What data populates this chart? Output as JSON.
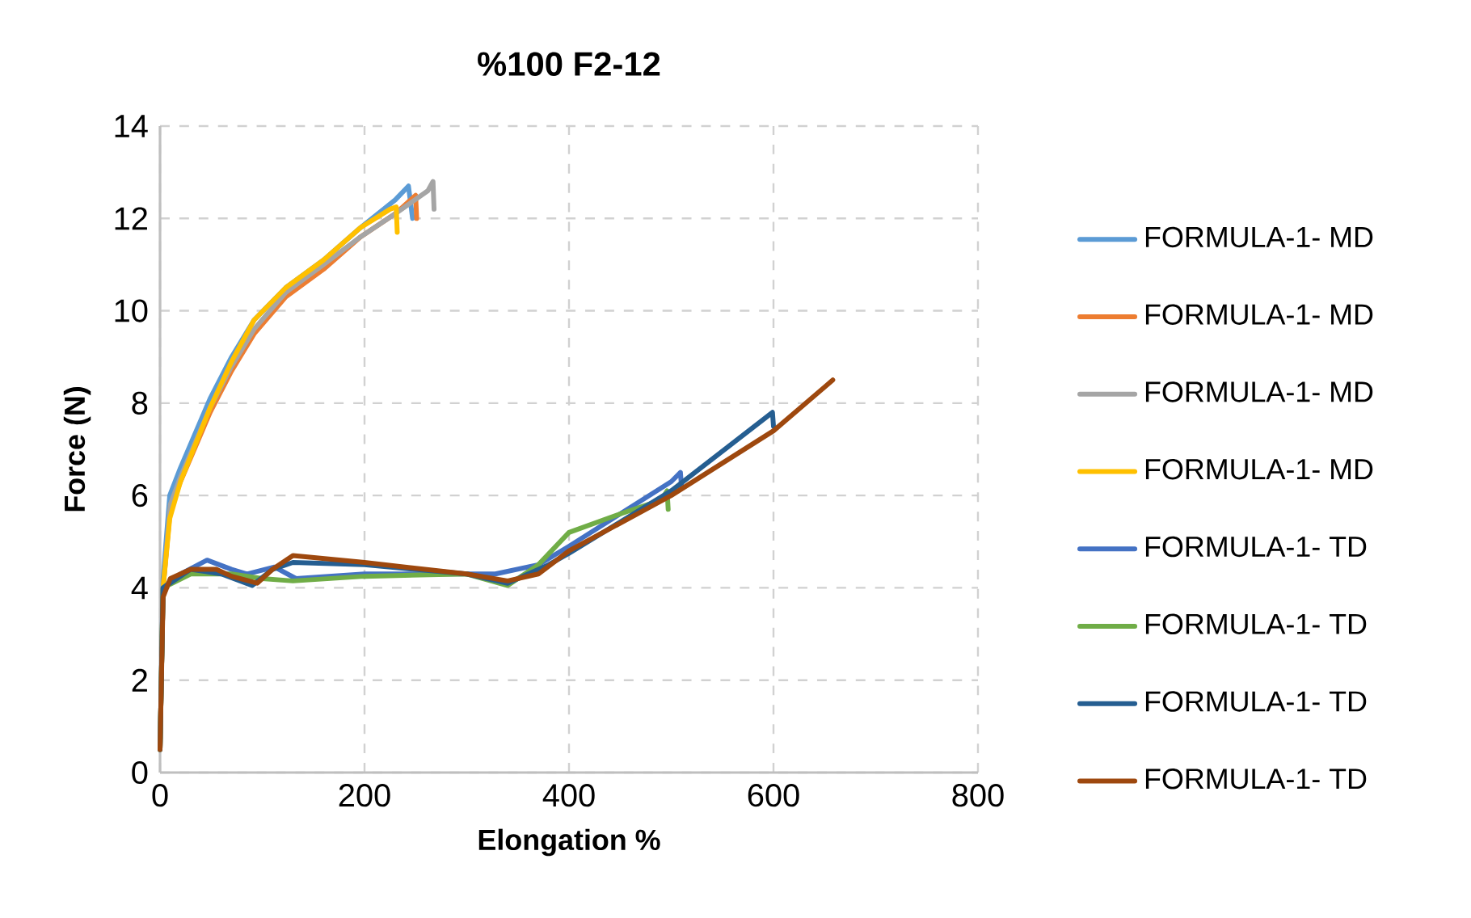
{
  "chart_data": {
    "type": "line",
    "title": "%100 F2-12",
    "xlabel": "Elongation %",
    "ylabel": "Force (N)",
    "xlim": [
      0,
      800
    ],
    "xticks": [
      0,
      200,
      400,
      600,
      800
    ],
    "ylim": [
      0,
      14
    ],
    "yticks": [
      0,
      2,
      4,
      6,
      8,
      10,
      12,
      14
    ],
    "grid": true,
    "legend": "right",
    "series": [
      {
        "name": "FORMULA-1- MD",
        "color": "#5b9bd5",
        "x": [
          0,
          3,
          9.5,
          20,
          49,
          70,
          92,
          123,
          160,
          196,
          230,
          243,
          247
        ],
        "values": [
          0.5,
          4.2,
          6.0,
          6.6,
          8.1,
          9.0,
          9.8,
          10.5,
          11.1,
          11.8,
          12.4,
          12.7,
          12.0
        ]
      },
      {
        "name": "FORMULA-1- MD",
        "color": "#ed7d31",
        "x": [
          0,
          3,
          10,
          20,
          49,
          70,
          92,
          123,
          160,
          196,
          230,
          250,
          251
        ],
        "values": [
          0.5,
          4.0,
          5.7,
          6.3,
          7.8,
          8.7,
          9.5,
          10.3,
          10.9,
          11.6,
          12.1,
          12.5,
          12.0
        ]
      },
      {
        "name": "FORMULA-1- MD",
        "color": "#a5a5a5",
        "x": [
          0,
          3,
          10,
          20,
          49,
          70,
          92,
          123,
          160,
          196,
          230,
          262,
          267,
          268
        ],
        "values": [
          0.5,
          4.0,
          5.8,
          6.4,
          7.9,
          8.8,
          9.6,
          10.4,
          11.0,
          11.6,
          12.1,
          12.6,
          12.8,
          12.2
        ]
      },
      {
        "name": "FORMULA-1- MD",
        "color": "#ffc000",
        "x": [
          0,
          3,
          9.5,
          20,
          49,
          70,
          92,
          123,
          160,
          196,
          225,
          231,
          232
        ],
        "values": [
          0.5,
          4.0,
          5.5,
          6.3,
          7.9,
          8.9,
          9.8,
          10.5,
          11.1,
          11.8,
          12.2,
          12.25,
          11.7
        ]
      },
      {
        "name": "FORMULA-1- TD",
        "color": "#4472c4",
        "x": [
          0,
          3,
          20,
          46,
          70,
          85,
          112,
          133,
          200,
          260,
          328,
          370,
          400,
          450,
          500,
          509,
          510
        ],
        "values": [
          0.5,
          4.0,
          4.3,
          4.6,
          4.4,
          4.3,
          4.45,
          4.2,
          4.3,
          4.3,
          4.3,
          4.5,
          4.9,
          5.6,
          6.3,
          6.5,
          6.2
        ]
      },
      {
        "name": "FORMULA-1- TD",
        "color": "#70ad47",
        "x": [
          0,
          3,
          30,
          70,
          100,
          130,
          200,
          300,
          340,
          370,
          400,
          450,
          490,
          496,
          497
        ],
        "values": [
          0.5,
          4.0,
          4.3,
          4.3,
          4.2,
          4.15,
          4.25,
          4.3,
          4.05,
          4.5,
          5.2,
          5.6,
          5.9,
          6.1,
          5.7
        ]
      },
      {
        "name": "FORMULA-1- TD",
        "color": "#255e91",
        "x": [
          0,
          3,
          30,
          60,
          90,
          110,
          130,
          200,
          300,
          340,
          380,
          400,
          500,
          599,
          600
        ],
        "values": [
          0.5,
          4.0,
          4.4,
          4.3,
          4.05,
          4.4,
          4.55,
          4.5,
          4.3,
          4.1,
          4.5,
          4.75,
          6.1,
          7.8,
          7.5
        ]
      },
      {
        "name": "FORMULA-1- TD",
        "color": "#9e480e",
        "x": [
          0,
          3,
          10,
          30,
          55,
          70,
          95,
          110,
          130,
          200,
          300,
          340,
          370,
          400,
          500,
          600,
          658
        ],
        "values": [
          0.5,
          3.8,
          4.2,
          4.4,
          4.4,
          4.25,
          4.1,
          4.4,
          4.7,
          4.55,
          4.3,
          4.15,
          4.3,
          4.8,
          6.0,
          7.4,
          8.5
        ]
      }
    ]
  }
}
